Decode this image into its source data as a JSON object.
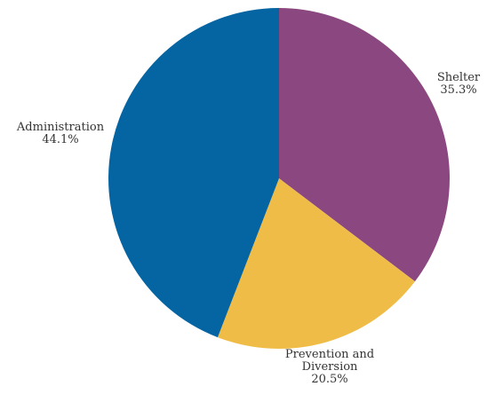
{
  "chart_data": {
    "type": "pie",
    "title": "",
    "start_angle_deg": 0,
    "direction": "clockwise",
    "slices": [
      {
        "label_lines": [
          "Shelter"
        ],
        "percent_label": "35.3%",
        "value": 35.3,
        "color": "#8b4880",
        "label_pos": "right"
      },
      {
        "label_lines": [
          "Prevention and",
          "Diversion"
        ],
        "percent_label": "20.5%",
        "value": 20.5,
        "color": "#efbd47",
        "label_pos": "bottom"
      },
      {
        "label_lines": [
          "Administration"
        ],
        "percent_label": "44.1%",
        "value": 44.1,
        "color": "#0565a2",
        "label_pos": "left"
      }
    ]
  }
}
